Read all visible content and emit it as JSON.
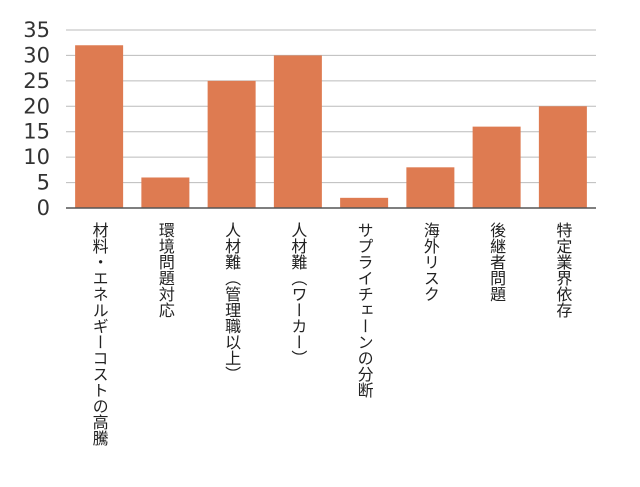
{
  "chart_data": {
    "type": "bar",
    "categories": [
      "材料・エネルギーコストの高騰",
      "環境問題対応",
      "人材難（管理職以上）",
      "人材難（ワーカー）",
      "サプライチェーンの分断",
      "海外リスク",
      "後継者問題",
      "特定業界依存"
    ],
    "values": [
      32,
      6,
      25,
      30,
      2,
      8,
      16,
      20
    ],
    "ylim": [
      0,
      35
    ],
    "yticks": [
      0,
      5,
      10,
      15,
      20,
      25,
      30,
      35
    ],
    "grid": true,
    "title": "",
    "xlabel": "",
    "ylabel": "",
    "bar_color": "#DE7B51",
    "grid_color": "#BBBBBB",
    "axis_color": "#555555"
  }
}
